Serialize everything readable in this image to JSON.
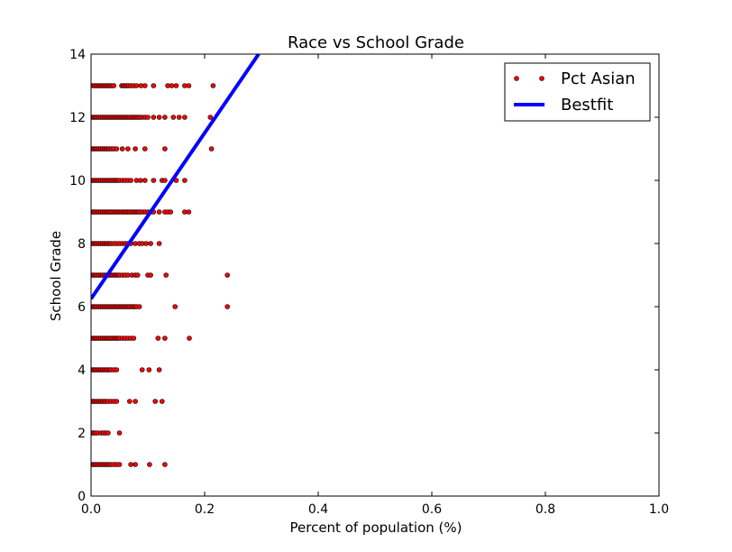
{
  "chart_data": {
    "type": "scatter",
    "title": "Race vs School Grade",
    "xlabel": "Percent of population (%)",
    "ylabel": "School Grade",
    "xlim": [
      0.0,
      1.0
    ],
    "ylim": [
      0,
      14
    ],
    "xticks": [
      "0.0",
      "0.2",
      "0.4",
      "0.6",
      "0.8",
      "1.0"
    ],
    "yticks": [
      "0",
      "2",
      "4",
      "6",
      "8",
      "10",
      "12",
      "14"
    ],
    "grid": false,
    "legend_position": "top-right",
    "series": [
      {
        "name": "Pct Asian",
        "kind": "scatter",
        "color": "#ff0000",
        "edge_color": "#000000",
        "points": [
          [
            0.003,
            13
          ],
          [
            0.006,
            13
          ],
          [
            0.009,
            13
          ],
          [
            0.012,
            13
          ],
          [
            0.015,
            13
          ],
          [
            0.018,
            13
          ],
          [
            0.021,
            13
          ],
          [
            0.024,
            13
          ],
          [
            0.027,
            13
          ],
          [
            0.03,
            13
          ],
          [
            0.033,
            13
          ],
          [
            0.036,
            13
          ],
          [
            0.04,
            13
          ],
          [
            0.054,
            13
          ],
          [
            0.057,
            13
          ],
          [
            0.06,
            13
          ],
          [
            0.063,
            13
          ],
          [
            0.066,
            13
          ],
          [
            0.07,
            13
          ],
          [
            0.075,
            13
          ],
          [
            0.08,
            13
          ],
          [
            0.088,
            13
          ],
          [
            0.095,
            13
          ],
          [
            0.11,
            13
          ],
          [
            0.135,
            13
          ],
          [
            0.142,
            13
          ],
          [
            0.15,
            13
          ],
          [
            0.165,
            13
          ],
          [
            0.172,
            13
          ],
          [
            0.215,
            13
          ],
          [
            0.002,
            12
          ],
          [
            0.005,
            12
          ],
          [
            0.008,
            12
          ],
          [
            0.011,
            12
          ],
          [
            0.014,
            12
          ],
          [
            0.017,
            12
          ],
          [
            0.02,
            12
          ],
          [
            0.023,
            12
          ],
          [
            0.026,
            12
          ],
          [
            0.029,
            12
          ],
          [
            0.032,
            12
          ],
          [
            0.035,
            12
          ],
          [
            0.038,
            12
          ],
          [
            0.041,
            12
          ],
          [
            0.044,
            12
          ],
          [
            0.047,
            12
          ],
          [
            0.05,
            12
          ],
          [
            0.053,
            12
          ],
          [
            0.056,
            12
          ],
          [
            0.059,
            12
          ],
          [
            0.062,
            12
          ],
          [
            0.065,
            12
          ],
          [
            0.068,
            12
          ],
          [
            0.071,
            12
          ],
          [
            0.074,
            12
          ],
          [
            0.077,
            12
          ],
          [
            0.08,
            12
          ],
          [
            0.083,
            12
          ],
          [
            0.086,
            12
          ],
          [
            0.09,
            12
          ],
          [
            0.095,
            12
          ],
          [
            0.1,
            12
          ],
          [
            0.11,
            12
          ],
          [
            0.12,
            12
          ],
          [
            0.13,
            12
          ],
          [
            0.145,
            12
          ],
          [
            0.155,
            12
          ],
          [
            0.165,
            12
          ],
          [
            0.21,
            12
          ],
          [
            0.002,
            11
          ],
          [
            0.005,
            11
          ],
          [
            0.008,
            11
          ],
          [
            0.011,
            11
          ],
          [
            0.014,
            11
          ],
          [
            0.017,
            11
          ],
          [
            0.02,
            11
          ],
          [
            0.023,
            11
          ],
          [
            0.026,
            11
          ],
          [
            0.029,
            11
          ],
          [
            0.032,
            11
          ],
          [
            0.036,
            11
          ],
          [
            0.04,
            11
          ],
          [
            0.045,
            11
          ],
          [
            0.055,
            11
          ],
          [
            0.065,
            11
          ],
          [
            0.078,
            11
          ],
          [
            0.095,
            11
          ],
          [
            0.13,
            11
          ],
          [
            0.212,
            11
          ],
          [
            0.002,
            10
          ],
          [
            0.005,
            10
          ],
          [
            0.008,
            10
          ],
          [
            0.011,
            10
          ],
          [
            0.014,
            10
          ],
          [
            0.017,
            10
          ],
          [
            0.02,
            10
          ],
          [
            0.023,
            10
          ],
          [
            0.026,
            10
          ],
          [
            0.029,
            10
          ],
          [
            0.032,
            10
          ],
          [
            0.035,
            10
          ],
          [
            0.038,
            10
          ],
          [
            0.041,
            10
          ],
          [
            0.044,
            10
          ],
          [
            0.047,
            10
          ],
          [
            0.05,
            10
          ],
          [
            0.055,
            10
          ],
          [
            0.06,
            10
          ],
          [
            0.065,
            10
          ],
          [
            0.07,
            10
          ],
          [
            0.08,
            10
          ],
          [
            0.087,
            10
          ],
          [
            0.095,
            10
          ],
          [
            0.11,
            10
          ],
          [
            0.125,
            10
          ],
          [
            0.13,
            10
          ],
          [
            0.15,
            10
          ],
          [
            0.165,
            10
          ],
          [
            0.002,
            9
          ],
          [
            0.005,
            9
          ],
          [
            0.008,
            9
          ],
          [
            0.011,
            9
          ],
          [
            0.014,
            9
          ],
          [
            0.017,
            9
          ],
          [
            0.02,
            9
          ],
          [
            0.023,
            9
          ],
          [
            0.026,
            9
          ],
          [
            0.029,
            9
          ],
          [
            0.032,
            9
          ],
          [
            0.035,
            9
          ],
          [
            0.038,
            9
          ],
          [
            0.041,
            9
          ],
          [
            0.044,
            9
          ],
          [
            0.047,
            9
          ],
          [
            0.05,
            9
          ],
          [
            0.053,
            9
          ],
          [
            0.056,
            9
          ],
          [
            0.059,
            9
          ],
          [
            0.062,
            9
          ],
          [
            0.065,
            9
          ],
          [
            0.068,
            9
          ],
          [
            0.071,
            9
          ],
          [
            0.074,
            9
          ],
          [
            0.077,
            9
          ],
          [
            0.08,
            9
          ],
          [
            0.083,
            9
          ],
          [
            0.086,
            9
          ],
          [
            0.09,
            9
          ],
          [
            0.095,
            9
          ],
          [
            0.1,
            9
          ],
          [
            0.105,
            9
          ],
          [
            0.11,
            9
          ],
          [
            0.12,
            9
          ],
          [
            0.13,
            9
          ],
          [
            0.135,
            9
          ],
          [
            0.14,
            9
          ],
          [
            0.165,
            9
          ],
          [
            0.172,
            9
          ],
          [
            0.002,
            8
          ],
          [
            0.005,
            8
          ],
          [
            0.008,
            8
          ],
          [
            0.011,
            8
          ],
          [
            0.014,
            8
          ],
          [
            0.017,
            8
          ],
          [
            0.02,
            8
          ],
          [
            0.023,
            8
          ],
          [
            0.026,
            8
          ],
          [
            0.029,
            8
          ],
          [
            0.032,
            8
          ],
          [
            0.035,
            8
          ],
          [
            0.04,
            8
          ],
          [
            0.045,
            8
          ],
          [
            0.05,
            8
          ],
          [
            0.055,
            8
          ],
          [
            0.06,
            8
          ],
          [
            0.065,
            8
          ],
          [
            0.07,
            8
          ],
          [
            0.078,
            8
          ],
          [
            0.085,
            8
          ],
          [
            0.09,
            8
          ],
          [
            0.097,
            8
          ],
          [
            0.105,
            8
          ],
          [
            0.12,
            8
          ],
          [
            0.002,
            7
          ],
          [
            0.005,
            7
          ],
          [
            0.008,
            7
          ],
          [
            0.011,
            7
          ],
          [
            0.014,
            7
          ],
          [
            0.017,
            7
          ],
          [
            0.02,
            7
          ],
          [
            0.023,
            7
          ],
          [
            0.026,
            7
          ],
          [
            0.029,
            7
          ],
          [
            0.032,
            7
          ],
          [
            0.035,
            7
          ],
          [
            0.038,
            7
          ],
          [
            0.041,
            7
          ],
          [
            0.044,
            7
          ],
          [
            0.047,
            7
          ],
          [
            0.05,
            7
          ],
          [
            0.055,
            7
          ],
          [
            0.06,
            7
          ],
          [
            0.065,
            7
          ],
          [
            0.072,
            7
          ],
          [
            0.078,
            7
          ],
          [
            0.082,
            7
          ],
          [
            0.1,
            7
          ],
          [
            0.105,
            7
          ],
          [
            0.132,
            7
          ],
          [
            0.24,
            7
          ],
          [
            0.002,
            6
          ],
          [
            0.005,
            6
          ],
          [
            0.008,
            6
          ],
          [
            0.011,
            6
          ],
          [
            0.014,
            6
          ],
          [
            0.017,
            6
          ],
          [
            0.02,
            6
          ],
          [
            0.023,
            6
          ],
          [
            0.026,
            6
          ],
          [
            0.029,
            6
          ],
          [
            0.032,
            6
          ],
          [
            0.035,
            6
          ],
          [
            0.038,
            6
          ],
          [
            0.041,
            6
          ],
          [
            0.044,
            6
          ],
          [
            0.047,
            6
          ],
          [
            0.05,
            6
          ],
          [
            0.053,
            6
          ],
          [
            0.056,
            6
          ],
          [
            0.059,
            6
          ],
          [
            0.062,
            6
          ],
          [
            0.065,
            6
          ],
          [
            0.068,
            6
          ],
          [
            0.071,
            6
          ],
          [
            0.074,
            6
          ],
          [
            0.077,
            6
          ],
          [
            0.08,
            6
          ],
          [
            0.085,
            6
          ],
          [
            0.148,
            6
          ],
          [
            0.24,
            6
          ],
          [
            0.002,
            5
          ],
          [
            0.005,
            5
          ],
          [
            0.008,
            5
          ],
          [
            0.011,
            5
          ],
          [
            0.014,
            5
          ],
          [
            0.017,
            5
          ],
          [
            0.02,
            5
          ],
          [
            0.023,
            5
          ],
          [
            0.026,
            5
          ],
          [
            0.029,
            5
          ],
          [
            0.032,
            5
          ],
          [
            0.035,
            5
          ],
          [
            0.038,
            5
          ],
          [
            0.041,
            5
          ],
          [
            0.044,
            5
          ],
          [
            0.047,
            5
          ],
          [
            0.05,
            5
          ],
          [
            0.055,
            5
          ],
          [
            0.06,
            5
          ],
          [
            0.065,
            5
          ],
          [
            0.07,
            5
          ],
          [
            0.075,
            5
          ],
          [
            0.118,
            5
          ],
          [
            0.13,
            5
          ],
          [
            0.173,
            5
          ],
          [
            0.002,
            4
          ],
          [
            0.005,
            4
          ],
          [
            0.008,
            4
          ],
          [
            0.011,
            4
          ],
          [
            0.014,
            4
          ],
          [
            0.017,
            4
          ],
          [
            0.02,
            4
          ],
          [
            0.023,
            4
          ],
          [
            0.026,
            4
          ],
          [
            0.029,
            4
          ],
          [
            0.032,
            4
          ],
          [
            0.035,
            4
          ],
          [
            0.04,
            4
          ],
          [
            0.045,
            4
          ],
          [
            0.09,
            4
          ],
          [
            0.102,
            4
          ],
          [
            0.12,
            4
          ],
          [
            0.002,
            3
          ],
          [
            0.005,
            3
          ],
          [
            0.008,
            3
          ],
          [
            0.011,
            3
          ],
          [
            0.014,
            3
          ],
          [
            0.017,
            3
          ],
          [
            0.02,
            3
          ],
          [
            0.023,
            3
          ],
          [
            0.026,
            3
          ],
          [
            0.03,
            3
          ],
          [
            0.035,
            3
          ],
          [
            0.04,
            3
          ],
          [
            0.045,
            3
          ],
          [
            0.068,
            3
          ],
          [
            0.078,
            3
          ],
          [
            0.113,
            3
          ],
          [
            0.125,
            3
          ],
          [
            0.002,
            2
          ],
          [
            0.005,
            2
          ],
          [
            0.008,
            2
          ],
          [
            0.012,
            2
          ],
          [
            0.018,
            2
          ],
          [
            0.022,
            2
          ],
          [
            0.026,
            2
          ],
          [
            0.03,
            2
          ],
          [
            0.05,
            2
          ],
          [
            0.002,
            1
          ],
          [
            0.005,
            1
          ],
          [
            0.008,
            1
          ],
          [
            0.011,
            1
          ],
          [
            0.014,
            1
          ],
          [
            0.017,
            1
          ],
          [
            0.02,
            1
          ],
          [
            0.023,
            1
          ],
          [
            0.026,
            1
          ],
          [
            0.029,
            1
          ],
          [
            0.032,
            1
          ],
          [
            0.035,
            1
          ],
          [
            0.04,
            1
          ],
          [
            0.045,
            1
          ],
          [
            0.05,
            1
          ],
          [
            0.07,
            1
          ],
          [
            0.078,
            1
          ],
          [
            0.103,
            1
          ],
          [
            0.13,
            1
          ]
        ]
      },
      {
        "name": "Bestfit",
        "kind": "line",
        "color": "#0000ff",
        "points": [
          [
            0.0,
            6.25
          ],
          [
            0.295,
            14.0
          ]
        ]
      }
    ]
  }
}
